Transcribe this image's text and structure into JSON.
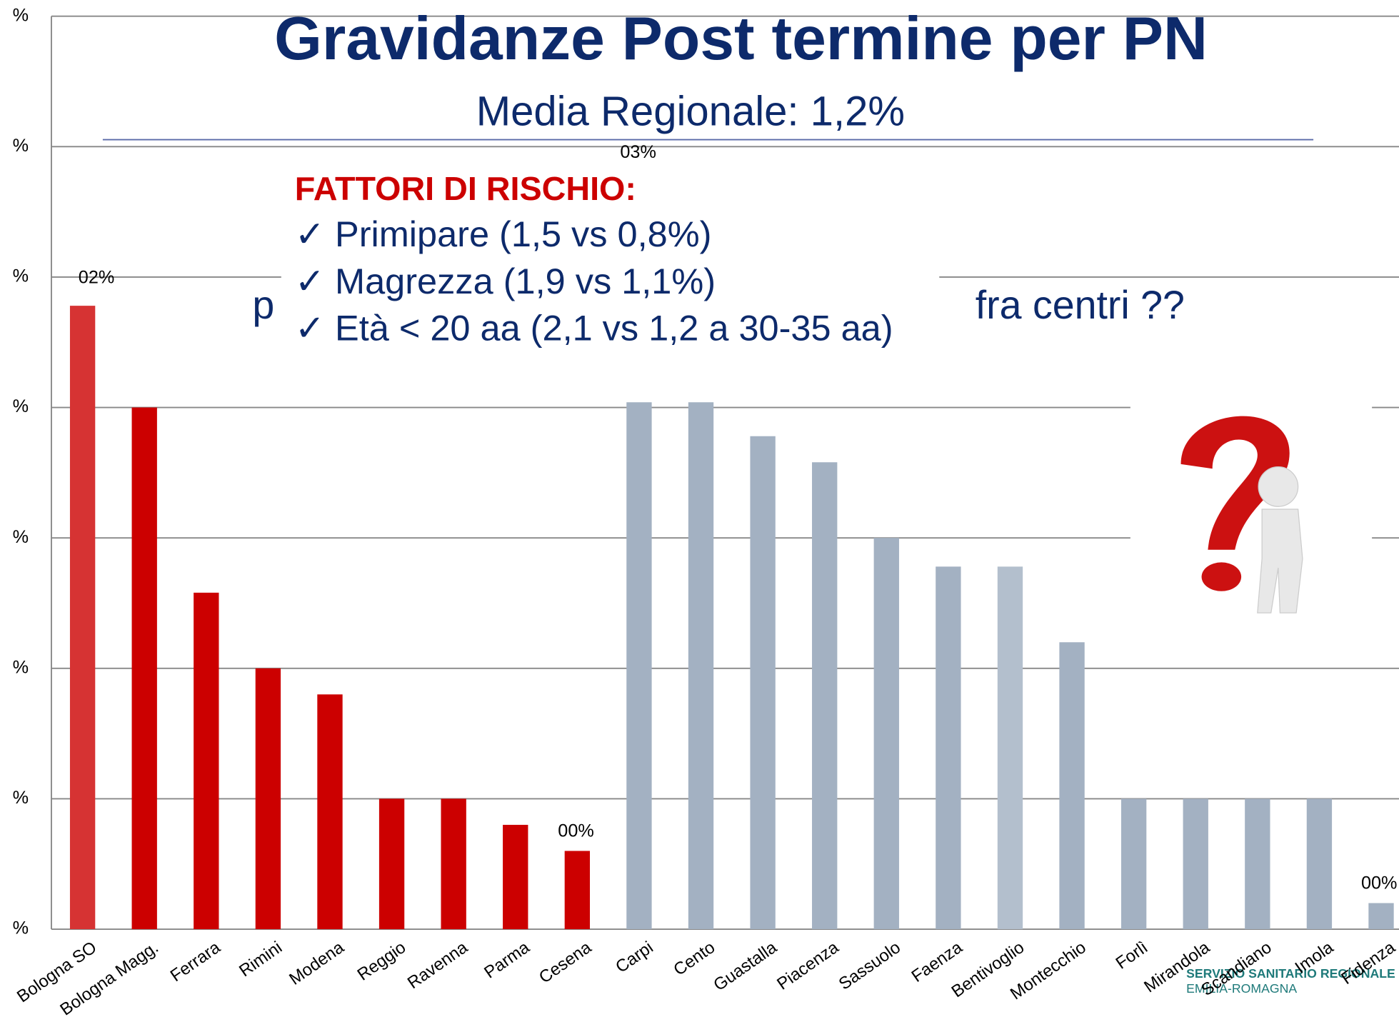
{
  "chart_data": {
    "type": "bar",
    "title": "Gravidanze Post termine per PN",
    "subtitle": "Media Regionale: 1,2%",
    "categories": [
      "Bologna SO",
      "Bologna Magg.",
      "Ferrara",
      "Rimini",
      "Modena",
      "Reggio",
      "Ravenna",
      "Parma",
      "Cesena",
      "Carpi",
      "Cento",
      "Guastalla",
      "Piacenza",
      "Sassuolo",
      "Faenza",
      "Bentivoglio",
      "Montecchio",
      "Forlì",
      "Mirandola",
      "Scandiano",
      "Imola",
      "Fidenza"
    ],
    "values": [
      2.39,
      2.0,
      1.29,
      1.0,
      0.9,
      0.5,
      0.5,
      0.4,
      0.3,
      2.02,
      2.02,
      1.89,
      1.79,
      1.5,
      1.39,
      1.39,
      1.1,
      0.5,
      0.5,
      0.5,
      0.5,
      0.1
    ],
    "colors": [
      "#d63333",
      "#cc0000",
      "#cc0000",
      "#cc0000",
      "#cc0000",
      "#cc0000",
      "#cc0000",
      "#cc0000",
      "#cc0000",
      "#a3b1c2",
      "#a3b1c2",
      "#a3b1c2",
      "#a3b1c2",
      "#a3b1c2",
      "#a3b1c2",
      "#b3bfcd",
      "#a3b1c2",
      "#a3b1c2",
      "#a3b1c2",
      "#a3b1c2",
      "#a3b1c2",
      "#a3b1c2"
    ],
    "ylim": [
      0,
      3.5
    ],
    "yticks": [
      {
        "value": 0,
        "label": "%"
      },
      {
        "value": 0.5,
        "label": "%"
      },
      {
        "value": 1.0,
        "label": "%"
      },
      {
        "value": 1.5,
        "label": "%"
      },
      {
        "value": 2.0,
        "label": "%"
      },
      {
        "value": 2.5,
        "label": "%"
      },
      {
        "value": 3.0,
        "label": "%"
      },
      {
        "value": 3.5,
        "label": "%"
      }
    ],
    "grid": true,
    "annotations": [
      "02%",
      "03%",
      "00%",
      "00%"
    ],
    "risk_factors": {
      "heading": "FATTORI DI RISCHIO:",
      "items": [
        "✓ Primipare (1,5 vs 0,8%)",
        "✓ Magrezza (1,9 vs 1,1%)",
        "✓ Età < 20 aa (2,1 vs 1,2 a 30-35 aa)"
      ]
    },
    "hidden_text": [
      "p",
      "fra centri ??"
    ],
    "logo": [
      "SERVIZIO SANITARIO REGIONALE",
      "EMILIA-ROMAGNA"
    ]
  }
}
